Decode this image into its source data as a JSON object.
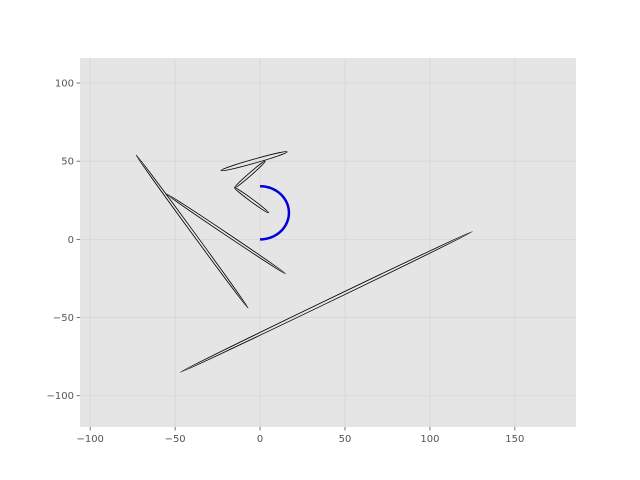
{
  "chart_data": {
    "type": "line",
    "title": "",
    "xlabel": "",
    "ylabel": "",
    "xlim": [
      -106,
      186
    ],
    "ylim": [
      -120,
      116
    ],
    "xticks": [
      -100,
      -50,
      0,
      50,
      100,
      150
    ],
    "yticks": [
      -100,
      -50,
      0,
      50,
      100
    ],
    "xtick_labels": [
      "−100",
      "−50",
      "0",
      "50",
      "100",
      "150"
    ],
    "ytick_labels": [
      "−100",
      "−50",
      "0",
      "50",
      "100"
    ],
    "grid": true,
    "colors": {
      "background": "#e5e5e5",
      "grid": "#d6d6d6",
      "outline": "#000000",
      "arc": "#0000dd"
    },
    "series": [
      {
        "shape": "thin-ellipse",
        "points": [
          [
            -73,
            54
          ],
          [
            -7,
            -44
          ]
        ],
        "half_width": 0.8
      },
      {
        "shape": "thin-ellipse",
        "points": [
          [
            -55,
            29
          ],
          [
            15,
            -22
          ]
        ],
        "half_width": 0.8
      },
      {
        "shape": "thin-ellipse",
        "points": [
          [
            -23,
            44
          ],
          [
            16,
            56
          ]
        ],
        "half_width": 1.3
      },
      {
        "shape": "thin-ellipse",
        "points": [
          [
            -15,
            33
          ],
          [
            3,
            50
          ]
        ],
        "half_width": 0.9
      },
      {
        "shape": "thin-ellipse",
        "points": [
          [
            -15,
            33
          ],
          [
            5,
            17
          ]
        ],
        "half_width": 0.9
      },
      {
        "shape": "thin-ellipse",
        "points": [
          [
            -47,
            -85
          ],
          [
            125,
            5
          ]
        ],
        "half_width": 0.9
      },
      {
        "shape": "arc",
        "center": [
          0,
          17
        ],
        "radius": 17,
        "start_deg": 90,
        "end_deg": -90
      }
    ]
  }
}
